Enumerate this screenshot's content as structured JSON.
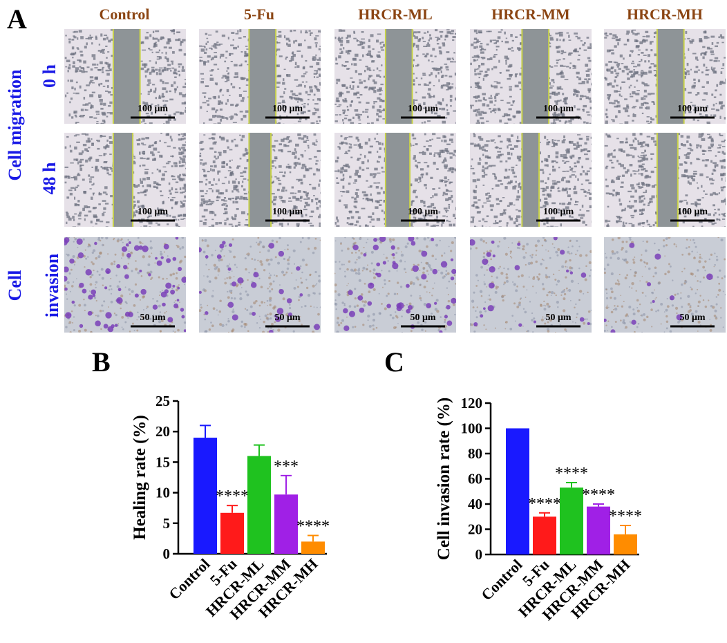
{
  "panel_a": {
    "letter": "A",
    "columns": [
      "Control",
      "5-Fu",
      "HRCR-ML",
      "HRCR-MM",
      "HRCR-MH"
    ],
    "row_group_migration": "Cell migration",
    "row_0h": "0 h",
    "row_48h": "48 h",
    "row_invasion_line1": "Cell",
    "row_invasion_line2": "invasion",
    "scale_migration": "100 μm",
    "scale_invasion": "50 μm"
  },
  "chart_data": [
    {
      "panel": "B",
      "type": "bar",
      "categories": [
        "Control",
        "5-Fu",
        "HRCR-ML",
        "HRCR-MM",
        "HRCR-MH"
      ],
      "values": [
        19,
        6.7,
        16,
        9.7,
        2
      ],
      "errors": [
        2,
        1.2,
        1.8,
        3.1,
        1
      ],
      "significance": [
        "",
        "****",
        "",
        "***",
        "****"
      ],
      "colors": [
        "#1919ff",
        "#ff1a1a",
        "#1fc21f",
        "#a020e6",
        "#ff8c00"
      ],
      "ylabel": "Healing rate (%)",
      "ylim": [
        0,
        25
      ],
      "yticks": [
        0,
        5,
        10,
        15,
        20,
        25
      ]
    },
    {
      "panel": "C",
      "type": "bar",
      "categories": [
        "Control",
        "5-Fu",
        "HRCR-ML",
        "HRCR-MM",
        "HRCR-MH"
      ],
      "values": [
        100,
        30,
        53,
        38,
        16
      ],
      "errors": [
        0,
        3,
        4,
        2,
        7
      ],
      "significance": [
        "",
        "****",
        "****",
        "****",
        "****"
      ],
      "colors": [
        "#1919ff",
        "#ff1a1a",
        "#1fc21f",
        "#a020e6",
        "#ff8c00"
      ],
      "ylabel": "Cell invasion rate (%)",
      "ylim": [
        0,
        120
      ],
      "yticks": [
        0,
        20,
        40,
        60,
        80,
        100,
        120
      ]
    }
  ]
}
